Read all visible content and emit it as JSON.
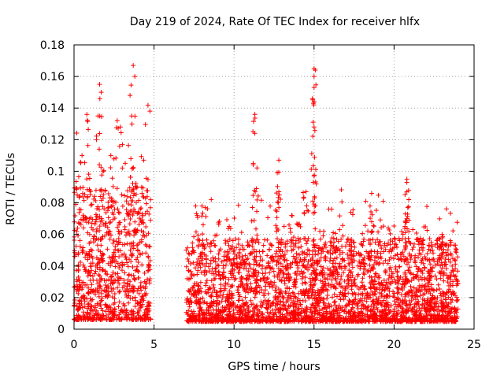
{
  "chart_data": {
    "type": "scatter",
    "title": "Day 219 of 2024, Rate Of TEC Index for receiver hlfx",
    "xlabel": "GPS time / hours",
    "ylabel": "ROTI / TECUs",
    "xlim": [
      0,
      25
    ],
    "ylim": [
      0,
      0.18
    ],
    "xticks": [
      "0",
      "5",
      "10",
      "15",
      "20",
      "25"
    ],
    "yticks": [
      "0",
      "0.02",
      "0.04",
      "0.06",
      "0.08",
      "0.1",
      "0.12",
      "0.14",
      "0.16",
      "0.18"
    ],
    "grid": true,
    "marker": "plus",
    "series": [
      {
        "name": "ROTI",
        "color": "#ff0000",
        "segments": [
          {
            "start": 0.0,
            "end": 4.8,
            "base": 0.015,
            "spread": 0.035
          },
          {
            "start": 7.0,
            "end": 24.0,
            "base": 0.012,
            "spread": 0.022
          }
        ],
        "peaks": [
          {
            "x": 1.6,
            "y": 0.155
          },
          {
            "x": 1.7,
            "y": 0.15
          },
          {
            "x": 1.5,
            "y": 0.135
          },
          {
            "x": 0.8,
            "y": 0.136
          },
          {
            "x": 1.4,
            "y": 0.12
          },
          {
            "x": 2.7,
            "y": 0.132
          },
          {
            "x": 2.9,
            "y": 0.128
          },
          {
            "x": 3.5,
            "y": 0.148
          },
          {
            "x": 3.7,
            "y": 0.167
          },
          {
            "x": 3.8,
            "y": 0.16
          },
          {
            "x": 3.6,
            "y": 0.135
          },
          {
            "x": 2.3,
            "y": 0.11
          },
          {
            "x": 0.5,
            "y": 0.11
          },
          {
            "x": 3.2,
            "y": 0.105
          },
          {
            "x": 11.3,
            "y": 0.136
          },
          {
            "x": 11.3,
            "y": 0.124
          },
          {
            "x": 11.2,
            "y": 0.105
          },
          {
            "x": 12.8,
            "y": 0.107
          },
          {
            "x": 12.7,
            "y": 0.099
          },
          {
            "x": 12.8,
            "y": 0.087
          },
          {
            "x": 12.8,
            "y": 0.077
          },
          {
            "x": 11.4,
            "y": 0.089
          },
          {
            "x": 15.0,
            "y": 0.165
          },
          {
            "x": 15.0,
            "y": 0.16
          },
          {
            "x": 15.0,
            "y": 0.153
          },
          {
            "x": 14.9,
            "y": 0.146
          },
          {
            "x": 15.0,
            "y": 0.128
          },
          {
            "x": 15.0,
            "y": 0.097
          },
          {
            "x": 14.5,
            "y": 0.087
          },
          {
            "x": 18.6,
            "y": 0.086
          },
          {
            "x": 18.5,
            "y": 0.078
          },
          {
            "x": 20.8,
            "y": 0.095
          },
          {
            "x": 20.8,
            "y": 0.093
          },
          {
            "x": 20.8,
            "y": 0.087
          },
          {
            "x": 20.7,
            "y": 0.073
          },
          {
            "x": 20.8,
            "y": 0.07
          },
          {
            "x": 23.0,
            "y": 0.06
          },
          {
            "x": 8.0,
            "y": 0.078
          },
          {
            "x": 8.2,
            "y": 0.077
          },
          {
            "x": 7.6,
            "y": 0.078
          },
          {
            "x": 17.3,
            "y": 0.074
          },
          {
            "x": 16.1,
            "y": 0.076
          },
          {
            "x": 13.6,
            "y": 0.072
          },
          {
            "x": 9.7,
            "y": 0.065
          },
          {
            "x": 10.0,
            "y": 0.042
          },
          {
            "x": 21.7,
            "y": 0.054
          }
        ]
      }
    ]
  }
}
